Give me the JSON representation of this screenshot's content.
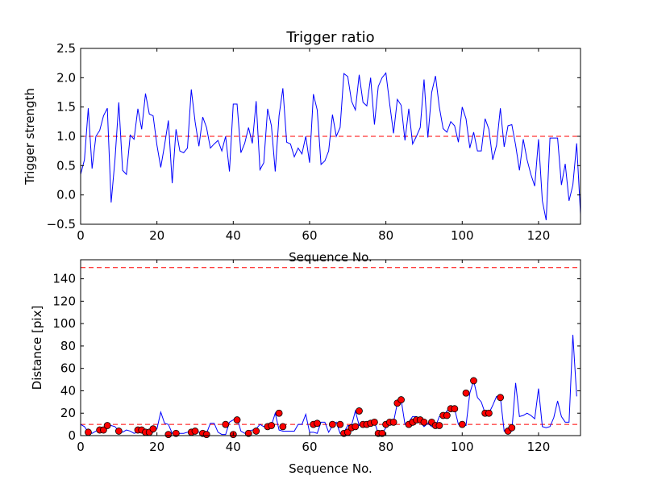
{
  "chart_data": [
    {
      "type": "line",
      "title": "Trigger ratio",
      "xlabel": "Sequence No.",
      "ylabel": "Trigger strength",
      "xlim": [
        0,
        131
      ],
      "ylim": [
        -0.5,
        2.5
      ],
      "xticks": [
        0,
        20,
        40,
        60,
        80,
        100,
        120
      ],
      "yticks": [
        -0.5,
        0.0,
        0.5,
        1.0,
        1.5,
        2.0,
        2.5
      ],
      "xtick_labels": [
        "0",
        "20",
        "40",
        "60",
        "80",
        "100",
        "120"
      ],
      "ytick_labels": [
        "−0.5",
        "0.0",
        "0.5",
        "1.0",
        "1.5",
        "2.0",
        "2.5"
      ],
      "threshold": 1.0,
      "grid": false,
      "series": [
        {
          "name": "trigger strength",
          "color": "#0000ff",
          "values": [
            0.35,
            0.6,
            1.48,
            0.45,
            1.0,
            1.1,
            1.35,
            1.48,
            -0.13,
            0.6,
            1.58,
            0.42,
            0.35,
            1.02,
            0.95,
            1.47,
            1.12,
            1.73,
            1.38,
            1.35,
            0.85,
            0.47,
            0.85,
            1.27,
            0.2,
            1.12,
            0.75,
            0.72,
            0.8,
            1.8,
            1.25,
            0.83,
            1.33,
            1.15,
            0.8,
            0.87,
            0.93,
            0.75,
            1.0,
            0.4,
            1.55,
            1.55,
            0.72,
            0.88,
            1.15,
            0.88,
            1.6,
            0.43,
            0.55,
            1.47,
            1.18,
            0.4,
            1.35,
            1.82,
            0.9,
            0.87,
            0.65,
            0.8,
            0.7,
            1.0,
            0.55,
            1.72,
            1.45,
            0.52,
            0.58,
            0.75,
            1.37,
            1.0,
            1.15,
            2.07,
            2.02,
            1.6,
            1.45,
            2.05,
            1.58,
            1.52,
            2.0,
            1.2,
            1.85,
            2.0,
            2.08,
            1.55,
            1.05,
            1.63,
            1.53,
            0.93,
            1.47,
            0.87,
            1.0,
            1.15,
            1.97,
            0.98,
            1.75,
            2.03,
            1.5,
            1.13,
            1.07,
            1.25,
            1.18,
            0.9,
            1.5,
            1.3,
            0.8,
            1.07,
            0.75,
            0.75,
            1.3,
            1.12,
            0.6,
            0.85,
            1.48,
            0.82,
            1.18,
            1.2,
            0.85,
            0.42,
            0.95,
            0.6,
            0.35,
            0.15,
            0.95,
            -0.1,
            -0.43,
            0.97,
            0.97,
            0.97,
            0.17,
            0.53,
            -0.1,
            0.17,
            0.88,
            -0.33
          ]
        }
      ]
    },
    {
      "type": "line",
      "title": "",
      "xlabel": "Sequence No.",
      "ylabel": "Distance [pix]",
      "xlim": [
        0,
        131
      ],
      "ylim": [
        0,
        157
      ],
      "xticks": [
        0,
        20,
        40,
        60,
        80,
        100,
        120
      ],
      "yticks": [
        0,
        20,
        40,
        60,
        80,
        100,
        120,
        140
      ],
      "xtick_labels": [
        "0",
        "20",
        "40",
        "60",
        "80",
        "100",
        "120"
      ],
      "ytick_labels": [
        "0",
        "20",
        "40",
        "60",
        "80",
        "100",
        "120",
        "140"
      ],
      "thresholds": [
        10,
        150
      ],
      "grid": false,
      "series": [
        {
          "name": "distance",
          "color": "#0000ff",
          "values": [
            10,
            8,
            3,
            2,
            4,
            5,
            5,
            9,
            9,
            8,
            4,
            3,
            5,
            4,
            2,
            3,
            5,
            5,
            3,
            3,
            6,
            21,
            11,
            10,
            2,
            2,
            2,
            2,
            3,
            4,
            5,
            3,
            2,
            2,
            11,
            11,
            3,
            1,
            1,
            12,
            14,
            16,
            4,
            2,
            4,
            5,
            6,
            10,
            8,
            10,
            9,
            20,
            5,
            4,
            4,
            4,
            4,
            10,
            10,
            19,
            3,
            3,
            2,
            12,
            12,
            3,
            9,
            12,
            2,
            3,
            9,
            9,
            22,
            9,
            9,
            10,
            11,
            12,
            2,
            2,
            7,
            12,
            12,
            29,
            32,
            10,
            12,
            17,
            17,
            12,
            8,
            11,
            8,
            8,
            17,
            17,
            22,
            25,
            24,
            10,
            9,
            9,
            38,
            49,
            34,
            30,
            20,
            20,
            27,
            35,
            34,
            4,
            6,
            4,
            47,
            17,
            18,
            20,
            18,
            15,
            42,
            8,
            7,
            8,
            16,
            31,
            17,
            12,
            12,
            90,
            35
          ]
        },
        {
          "name": "flagged points",
          "color": "#ff0000",
          "marker": "circle",
          "points": [
            [
              2,
              3
            ],
            [
              5,
              5
            ],
            [
              6,
              5
            ],
            [
              7,
              9
            ],
            [
              10,
              4
            ],
            [
              15,
              5
            ],
            [
              16,
              5
            ],
            [
              17,
              3
            ],
            [
              18,
              3
            ],
            [
              19,
              6
            ],
            [
              23,
              1
            ],
            [
              25,
              2
            ],
            [
              29,
              3
            ],
            [
              30,
              4
            ],
            [
              32,
              2
            ],
            [
              33,
              1
            ],
            [
              38,
              10
            ],
            [
              40,
              1
            ],
            [
              41,
              14
            ],
            [
              44,
              2
            ],
            [
              46,
              4
            ],
            [
              49,
              8
            ],
            [
              50,
              9
            ],
            [
              52,
              20
            ],
            [
              53,
              8
            ],
            [
              61,
              10
            ],
            [
              62,
              11
            ],
            [
              66,
              10
            ],
            [
              68,
              10
            ],
            [
              69,
              2
            ],
            [
              70,
              3
            ],
            [
              71,
              7
            ],
            [
              72,
              8
            ],
            [
              73,
              22
            ],
            [
              74,
              10
            ],
            [
              75,
              10
            ],
            [
              76,
              11
            ],
            [
              77,
              12
            ],
            [
              78,
              2
            ],
            [
              79,
              2
            ],
            [
              80,
              10
            ],
            [
              81,
              12
            ],
            [
              82,
              12
            ],
            [
              83,
              29
            ],
            [
              84,
              32
            ],
            [
              86,
              10
            ],
            [
              87,
              12
            ],
            [
              88,
              14
            ],
            [
              89,
              14
            ],
            [
              90,
              12
            ],
            [
              92,
              12
            ],
            [
              93,
              9
            ],
            [
              94,
              9
            ],
            [
              95,
              18
            ],
            [
              96,
              18
            ],
            [
              97,
              24
            ],
            [
              98,
              24
            ],
            [
              100,
              10
            ],
            [
              101,
              38
            ],
            [
              103,
              49
            ],
            [
              106,
              20
            ],
            [
              107,
              20
            ],
            [
              110,
              34
            ],
            [
              112,
              4
            ],
            [
              113,
              7
            ]
          ]
        }
      ]
    }
  ]
}
